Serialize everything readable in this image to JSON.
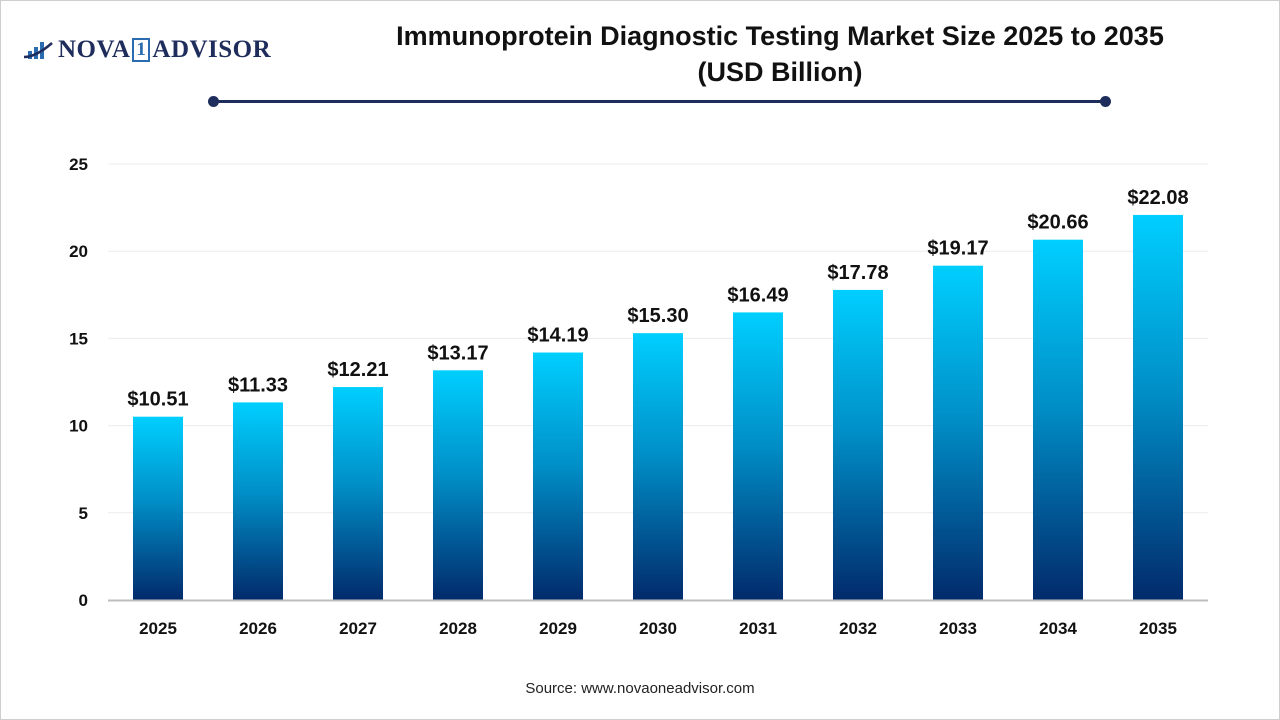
{
  "logo": {
    "text_left": "NOVA",
    "text_num": "1",
    "text_right": "ADVISOR"
  },
  "chart_data": {
    "type": "bar",
    "title": "Immunoprotein Diagnostic Testing Market Size 2025 to 2035",
    "subtitle": "(USD Billion)",
    "categories": [
      "2025",
      "2026",
      "2027",
      "2028",
      "2029",
      "2030",
      "2031",
      "2032",
      "2033",
      "2034",
      "2035"
    ],
    "values": [
      10.51,
      11.33,
      12.21,
      13.17,
      14.19,
      15.3,
      16.49,
      17.78,
      19.17,
      20.66,
      22.08
    ],
    "data_labels": [
      "$10.51",
      "$11.33",
      "$12.21",
      "$13.17",
      "$14.19",
      "$15.30",
      "$16.49",
      "$17.78",
      "$19.17",
      "$20.66",
      "$22.08"
    ],
    "xlabel": "",
    "ylabel": "",
    "ylim": [
      0,
      25
    ],
    "yticks": [
      0,
      5,
      10,
      15,
      20,
      25
    ],
    "grid": true,
    "colors": {
      "bar_top": "#00cfff",
      "bar_bottom": "#022a6b",
      "title_rule": "#1f2d5c"
    }
  },
  "source": "Source: www.novaoneadvisor.com"
}
